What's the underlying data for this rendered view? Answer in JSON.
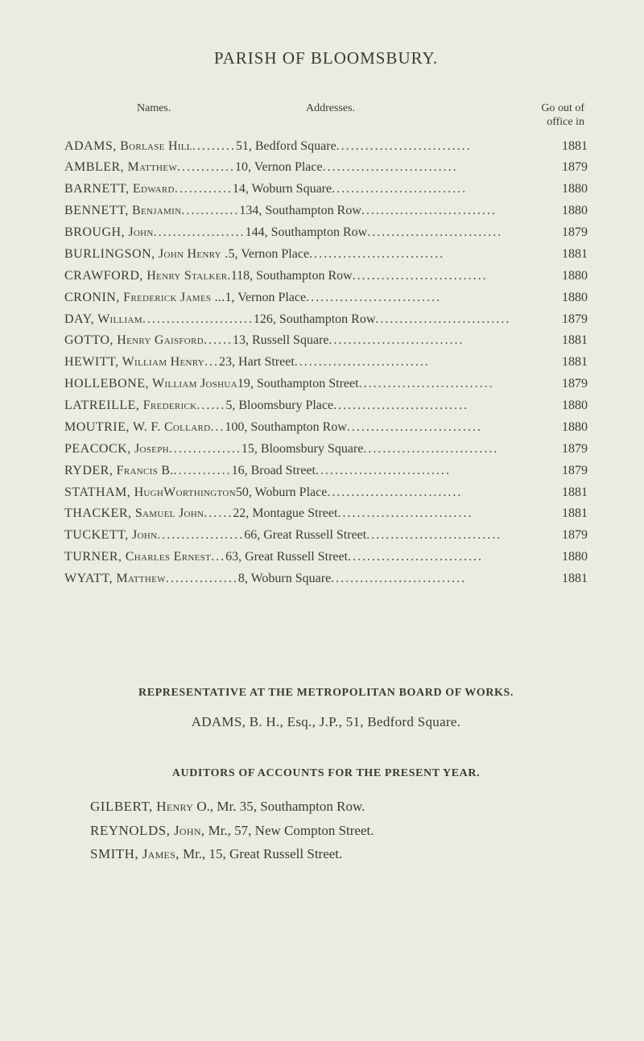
{
  "title": "PARISH OF BLOOMSBURY.",
  "headers": {
    "names": "Names.",
    "addresses": "Addresses.",
    "goout_line1": "Go out of",
    "goout_line2": "office in"
  },
  "entries": [
    {
      "surname": "ADAMS,",
      "given": "Borlase Hill",
      "name_dots": " .........",
      "address": " 51, Bedford Square",
      "year": "1881"
    },
    {
      "surname": "AMBLER,",
      "given": "Matthew",
      "name_dots": " ............",
      "address": " 10, Vernon Place ",
      "year": "1879"
    },
    {
      "surname": "BARNETT,",
      "given": "Edward",
      "name_dots": " ............",
      "address": " 14, Woburn Square ",
      "year": "1880"
    },
    {
      "surname": "BENNETT,",
      "given": "Benjamin",
      "name_dots": "............",
      "address": " 134, Southampton Row",
      "year": "1880"
    },
    {
      "surname": "BROUGH,",
      "given": "John",
      "name_dots": " ...................",
      "address": " 144, Southampton Row",
      "year": "1879"
    },
    {
      "surname": "BURLINGSON,",
      "given": "John Henry .",
      "name_dots": "",
      "address": " 5, Vernon Place ",
      "year": "1881"
    },
    {
      "surname": "CRAWFORD,",
      "given": "Henry Stalker.",
      "name_dots": "",
      "address": " 118, Southampton Row ",
      "year": "1880"
    },
    {
      "surname": "CRONIN,",
      "given": "Frederick James ...",
      "name_dots": "",
      "address": " 1, Vernon Place ",
      "year": "1880"
    },
    {
      "surname": "DAY,",
      "given": "William",
      "name_dots": " .......................",
      "address": " 126, Southampton Row ",
      "year": "1879"
    },
    {
      "surname": "GOTTO,",
      "given": "Henry Gaisford",
      "name_dots": " ......",
      "address": " 13, Russell Square ",
      "year": "1881"
    },
    {
      "surname": "HEWITT,",
      "given": "William Henry",
      "name_dots": " ...",
      "address": " 23, Hart Street ",
      "year": "1881"
    },
    {
      "surname": "HOLLEBONE,",
      "given": "William Joshua",
      "name_dots": "",
      "address": " 19, Southampton Street",
      "year": "1879"
    },
    {
      "surname": "LATREILLE,",
      "given": "Frederick",
      "name_dots": " ......",
      "address": " 5, Bloomsbury Place ",
      "year": "1880"
    },
    {
      "surname": "MOUTRIE,",
      "given": "W. F. Collard",
      "name_dots": " ...",
      "address": " 100, Southampton Row ",
      "year": "1880"
    },
    {
      "surname": "PEACOCK,",
      "given": "Joseph",
      "name_dots": " ...............",
      "address": " 15, Bloomsbury Square ",
      "year": "1879"
    },
    {
      "surname": "RYDER,",
      "given": "Francis B.",
      "name_dots": " ............",
      "address": " 16, Broad Street",
      "year": "1879"
    },
    {
      "surname": "STATHAM,",
      "given": "HughWorthington",
      "name_dots": "",
      "address": " 50, Woburn Place ",
      "year": "1881"
    },
    {
      "surname": "THACKER,",
      "given": "Samuel John",
      "name_dots": " ......",
      "address": " 22, Montague Street ",
      "year": "1881"
    },
    {
      "surname": "TUCKETT,",
      "given": "John",
      "name_dots": " ..................",
      "address": " 66, Great Russell Street",
      "year": "1879"
    },
    {
      "surname": "TURNER,",
      "given": "Charles Ernest",
      "name_dots": " ...",
      "address": " 63, Great Russell Street",
      "year": "1880"
    },
    {
      "surname": "WYATT,",
      "given": "Matthew",
      "name_dots": " ...............",
      "address": " 8, Woburn Square ",
      "year": "1881"
    }
  ],
  "representative": {
    "heading": "REPRESENTATIVE AT THE METROPOLITAN BOARD OF WORKS.",
    "text": "ADAMS, B. H., Esq., J.P., 51, Bedford Square."
  },
  "auditors": {
    "heading": "AUDITORS OF ACCOUNTS FOR THE PRESENT YEAR.",
    "lines": [
      {
        "surname": "GILBERT,",
        "given": "Henry",
        "rest": " O., Mr. 35, Southampton Row."
      },
      {
        "surname": "REYNOLDS,",
        "given": "John,",
        "rest": " Mr., 57, New Compton Street."
      },
      {
        "surname": "SMITH,",
        "given": "James,",
        "rest": " Mr., 15, Great Russell Street."
      }
    ]
  },
  "colors": {
    "background": "#ebece1",
    "text": "#3a3a35"
  }
}
